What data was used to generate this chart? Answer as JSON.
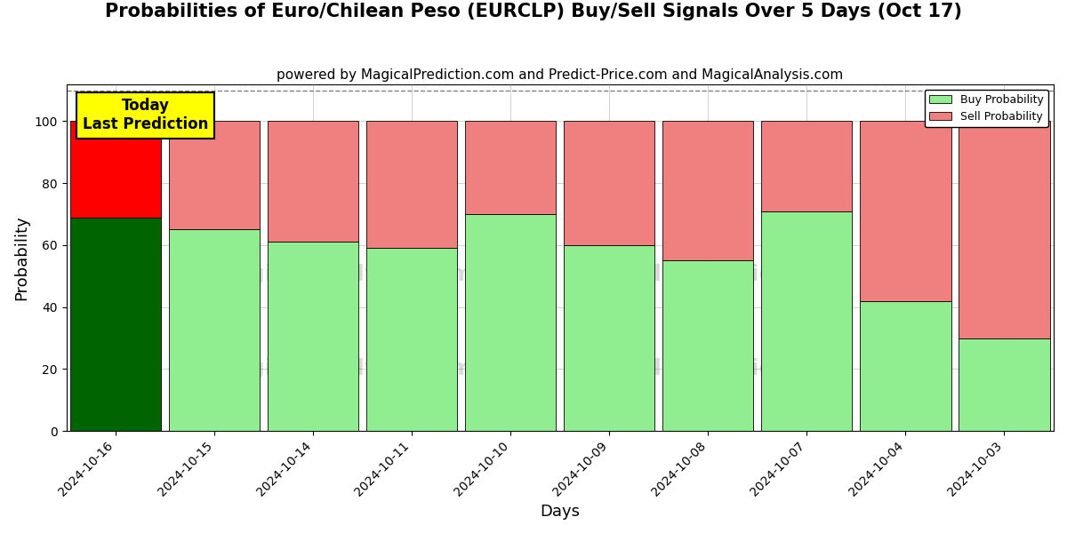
{
  "title": "Probabilities of Euro/Chilean Peso (EURCLP) Buy/Sell Signals Over 5 Days (Oct 17)",
  "subtitle": "powered by MagicalPrediction.com and Predict-Price.com and MagicalAnalysis.com",
  "xlabel": "Days",
  "ylabel": "Probability",
  "categories": [
    "2024-10-16",
    "2024-10-15",
    "2024-10-14",
    "2024-10-11",
    "2024-10-10",
    "2024-10-09",
    "2024-10-08",
    "2024-10-07",
    "2024-10-04",
    "2024-10-03"
  ],
  "buy_values": [
    69,
    65,
    61,
    59,
    70,
    60,
    55,
    71,
    42,
    30
  ],
  "sell_values": [
    31,
    35,
    39,
    41,
    30,
    40,
    45,
    29,
    58,
    70
  ],
  "today_bar_buy_color": "#006400",
  "today_bar_sell_color": "#ff0000",
  "other_bar_buy_color": "#90EE90",
  "other_bar_sell_color": "#F08080",
  "today_annotation_bg": "#ffff00",
  "today_annotation_text": "Today\nLast Prediction",
  "legend_buy_label": "Buy Probability",
  "legend_sell_label": "Sell Probability",
  "ylim": [
    0,
    112
  ],
  "yticks": [
    0,
    20,
    40,
    60,
    80,
    100
  ],
  "dashed_line_y": 110,
  "title_fontsize": 15,
  "subtitle_fontsize": 11,
  "axis_label_fontsize": 13,
  "tick_fontsize": 10,
  "bar_width": 0.92
}
